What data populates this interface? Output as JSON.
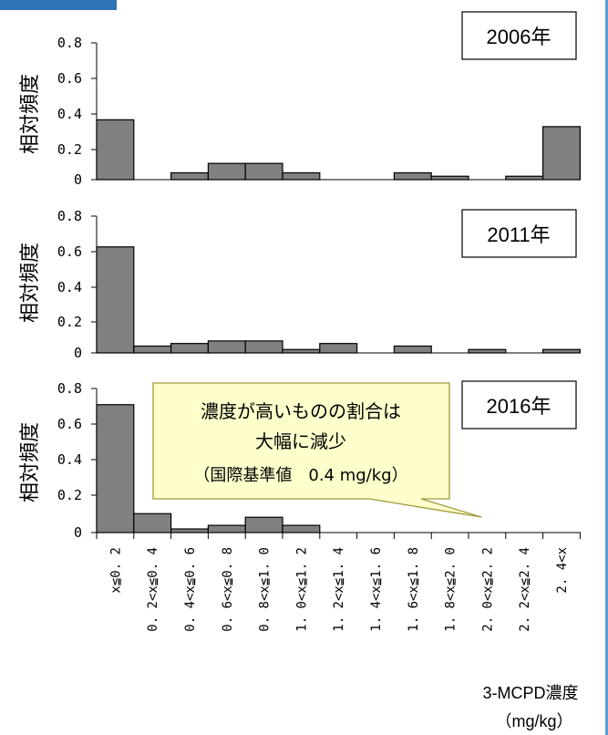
{
  "chart_data": {
    "type": "bar",
    "categories": [
      "x≦0.2",
      "0.2<x≦0.4",
      "0.4<x≦0.6",
      "0.6<x≦0.8",
      "0.8<x≦1.0",
      "1.0<x≦1.2",
      "1.2<x≦1.4",
      "1.4<x≦1.6",
      "1.6<x≦1.8",
      "1.8<x≦2.0",
      "2.0<x≦2.2",
      "2.2<x≦2.4",
      "2.4<x"
    ],
    "category_labels": [
      "x≦0. 2",
      "0. 2<x≦0. 4",
      "0. 4<x≦0. 6",
      "0. 6<x≦0. 8",
      "0. 8<x≦1. 0",
      "1. 0<x≦1. 2",
      "1. 2<x≦1. 4",
      "1. 4<x≦1. 6",
      "1. 6<x≦1. 8",
      "1. 8<x≦2. 0",
      "2. 0<x≦2. 2",
      "2. 2<x≦2. 4",
      "2. 4<x"
    ],
    "ylabel": "相対頻度",
    "ylim": [
      0,
      0.8
    ],
    "yticks": [
      "0",
      "0.2",
      "0.4",
      "0.6",
      "0.8"
    ],
    "xlabel_line1": "3-MCPD濃度",
    "xlabel_line2": "（mg/kg）",
    "bar_color": "#808080",
    "panels": [
      {
        "label": "2006年",
        "values": [
          0.35,
          0,
          0.04,
          0.095,
          0.095,
          0.04,
          0,
          0,
          0.04,
          0.02,
          0,
          0.02,
          0.31
        ]
      },
      {
        "label": "2011年",
        "values": [
          0.62,
          0.04,
          0.055,
          0.07,
          0.07,
          0.02,
          0.055,
          0,
          0.04,
          0,
          0.02,
          0,
          0.02
        ]
      },
      {
        "label": "2016年",
        "values": [
          0.71,
          0.105,
          0.02,
          0.04,
          0.085,
          0.04,
          0,
          0,
          0,
          0,
          0,
          0,
          0
        ]
      }
    ],
    "annotation": {
      "line1": "濃度が高いものの割合は",
      "line2": "大幅に減少",
      "line3": "（国際基準値　0.4 mg/kg）",
      "fill": "#ffffcc",
      "border": "#9c9c3a"
    }
  }
}
